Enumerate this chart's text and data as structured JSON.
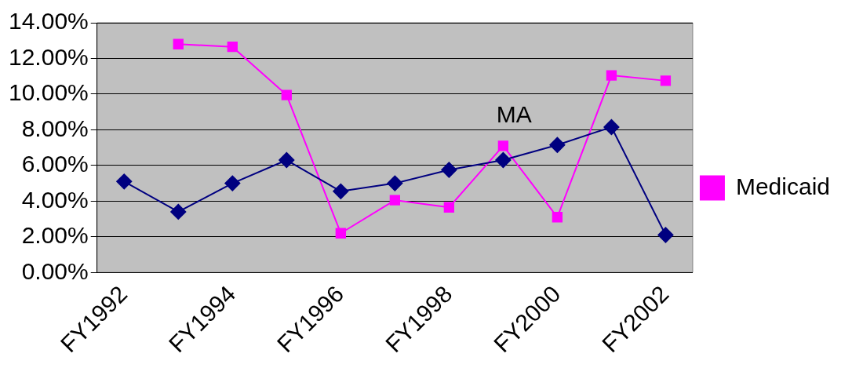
{
  "chart_data": {
    "type": "line",
    "categories": [
      "FY1992",
      null,
      "FY1994",
      null,
      "FY1996",
      null,
      "FY1998",
      null,
      "FY2000",
      null,
      "FY2002"
    ],
    "series": [
      {
        "color": "#000080",
        "marker": "diamond",
        "values": [
          5.1,
          3.4,
          5.0,
          6.3,
          4.55,
          5.0,
          5.75,
          6.3,
          7.15,
          8.15,
          2.1
        ]
      },
      {
        "name": "Medicaid",
        "color": "#ff00ff",
        "marker": "square",
        "values": [
          null,
          12.8,
          12.65,
          9.95,
          2.2,
          4.05,
          3.65,
          7.1,
          3.1,
          11.05,
          10.75
        ]
      }
    ],
    "ylim": [
      0,
      14
    ],
    "yticks": [
      {
        "value": 0,
        "label": "0.00%"
      },
      {
        "value": 2,
        "label": "2.00%"
      },
      {
        "value": 4,
        "label": "4.00%"
      },
      {
        "value": 6,
        "label": "6.00%"
      },
      {
        "value": 8,
        "label": "8.00%"
      },
      {
        "value": 10,
        "label": "10.00%"
      },
      {
        "value": 12,
        "label": "12.00%"
      },
      {
        "value": 14,
        "label": "14.00%"
      }
    ],
    "grid": "y",
    "legend": "right",
    "annotations": [
      "MA"
    ]
  }
}
